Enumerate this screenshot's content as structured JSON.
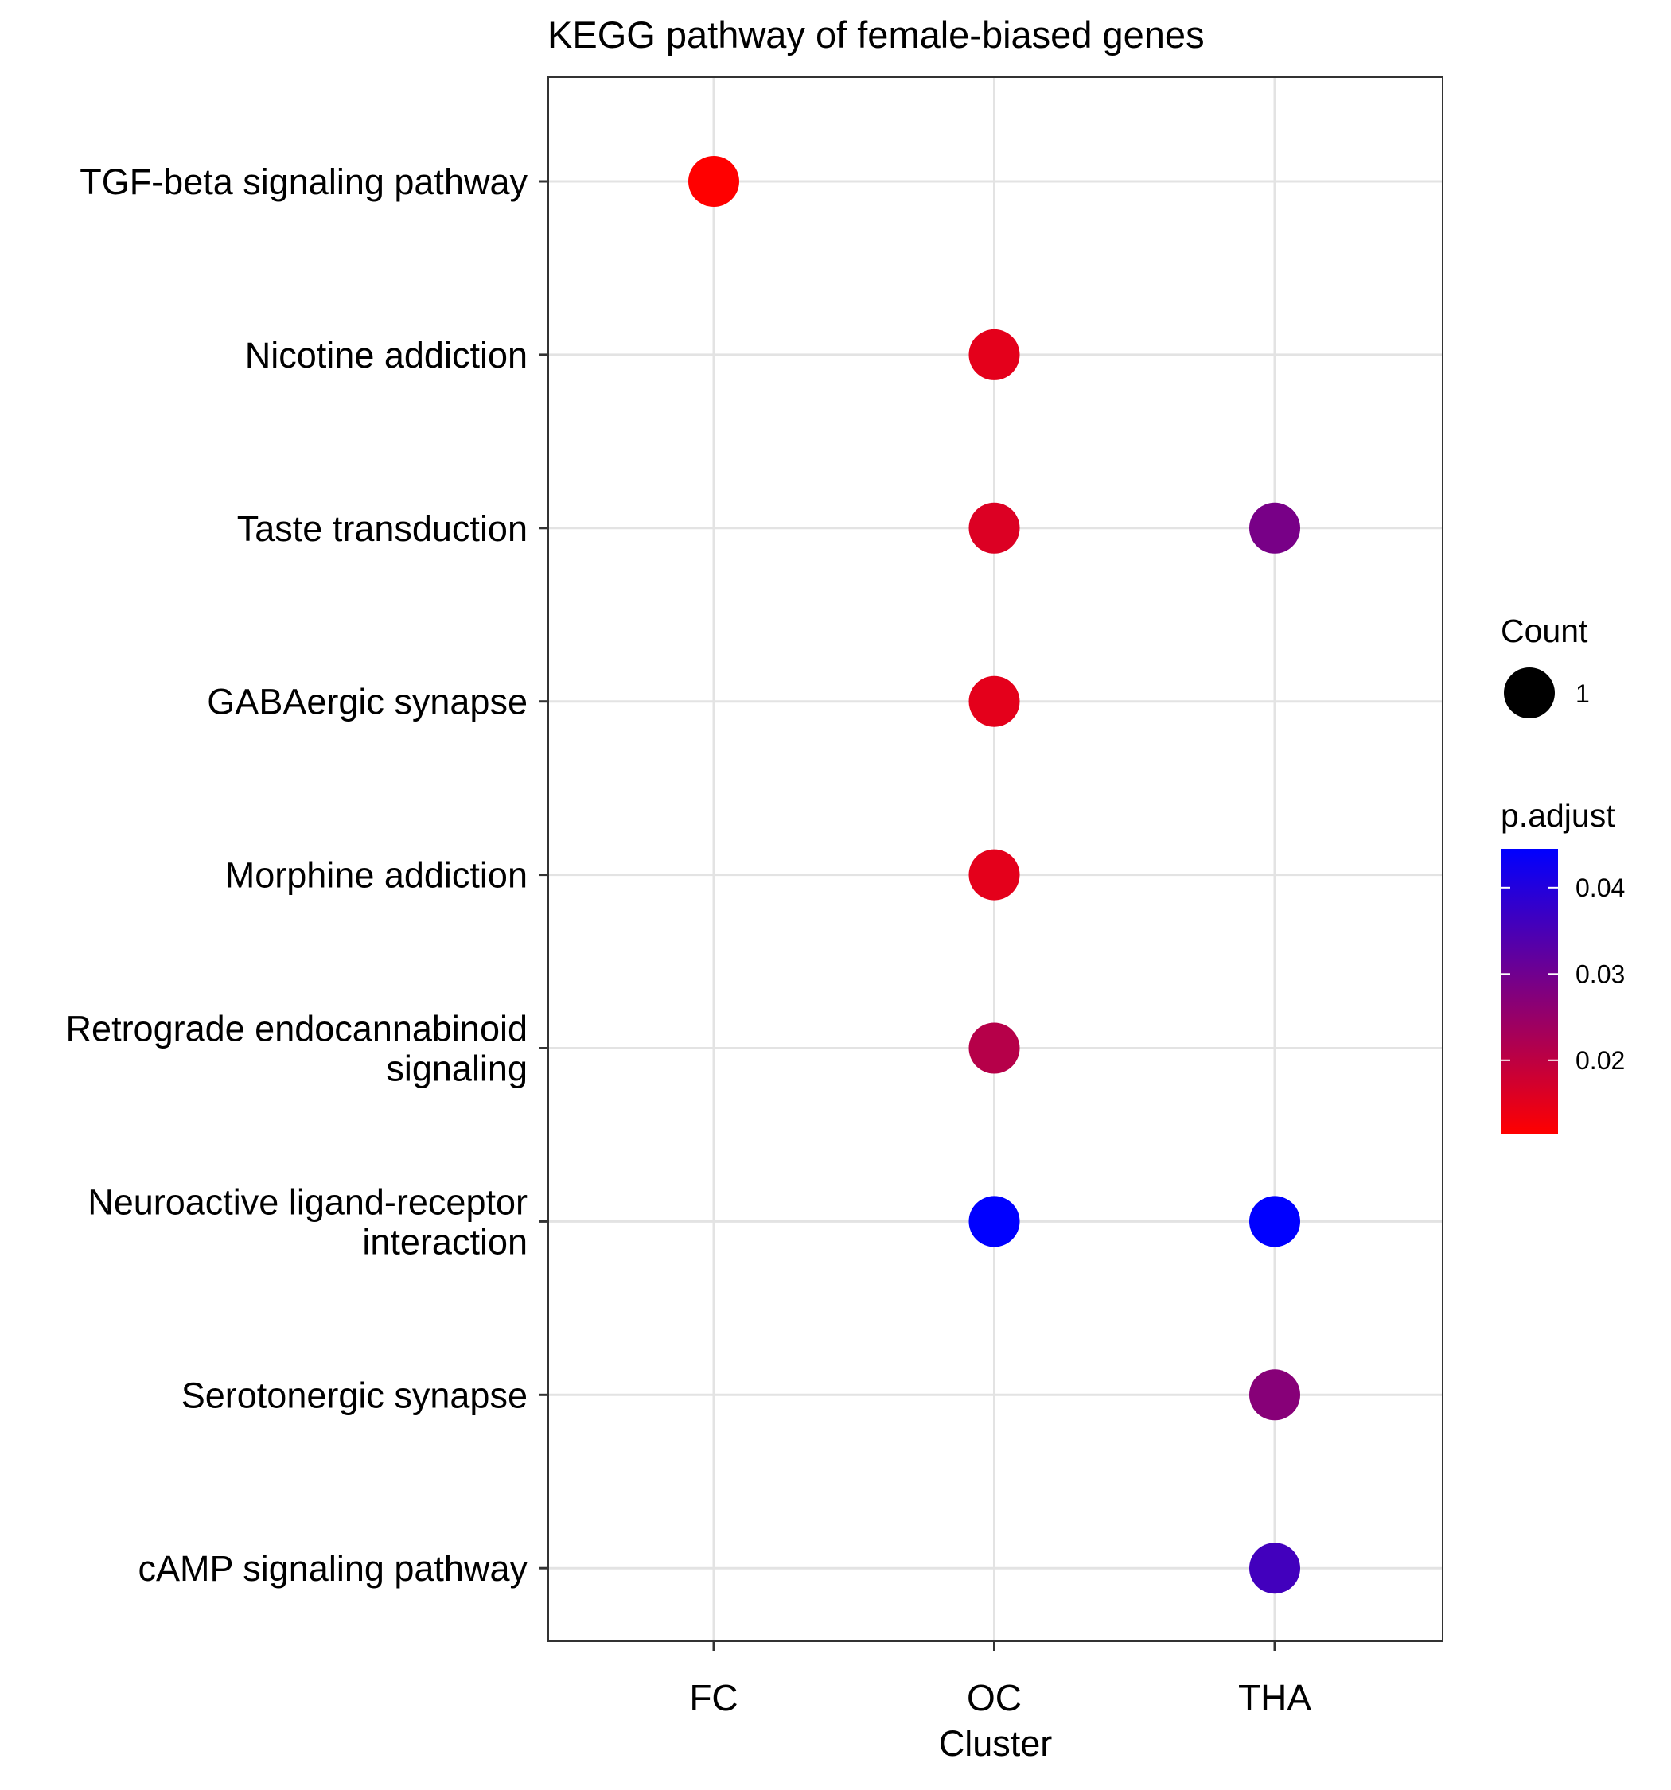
{
  "chart_data": {
    "type": "scatter",
    "title": "KEGG pathway of female-biased genes",
    "xlabel": "Cluster",
    "ylabel": "",
    "x_categories": [
      "FC",
      "OC",
      "THA"
    ],
    "y_categories": [
      "TGF-beta signaling pathway",
      "Nicotine addiction",
      "Taste transduction",
      "GABAergic synapse",
      "Morphine addiction",
      "Retrograde endocannabinoid\nsignaling",
      "Neuroactive ligand-receptor\ninteraction",
      "Serotonergic synapse",
      "cAMP signaling pathway"
    ],
    "points": [
      {
        "x": "FC",
        "y": "TGF-beta signaling pathway",
        "count": 1,
        "p_adjust": 0.0115
      },
      {
        "x": "OC",
        "y": "Nicotine addiction",
        "count": 1,
        "p_adjust": 0.015
      },
      {
        "x": "OC",
        "y": "Taste transduction",
        "count": 1,
        "p_adjust": 0.016
      },
      {
        "x": "THA",
        "y": "Taste transduction",
        "count": 1,
        "p_adjust": 0.029
      },
      {
        "x": "OC",
        "y": "GABAergic synapse",
        "count": 1,
        "p_adjust": 0.015
      },
      {
        "x": "OC",
        "y": "Morphine addiction",
        "count": 1,
        "p_adjust": 0.015
      },
      {
        "x": "OC",
        "y": "Retrograde endocannabinoid\nsignaling",
        "count": 1,
        "p_adjust": 0.021
      },
      {
        "x": "OC",
        "y": "Neuroactive ligand-receptor\ninteraction",
        "count": 1,
        "p_adjust": 0.0445
      },
      {
        "x": "THA",
        "y": "Neuroactive ligand-receptor\ninteraction",
        "count": 1,
        "p_adjust": 0.0445
      },
      {
        "x": "THA",
        "y": "Serotonergic synapse",
        "count": 1,
        "p_adjust": 0.027
      },
      {
        "x": "THA",
        "y": "cAMP signaling pathway",
        "count": 1,
        "p_adjust": 0.036
      }
    ],
    "legend": {
      "size_title": "Count",
      "size_entries": [
        {
          "label": "1",
          "value": 1
        }
      ],
      "color_title": "p.adjust",
      "color_range": [
        0.0115,
        0.0445
      ],
      "color_low": "#ff0000",
      "color_high": "#0000ff",
      "color_ticks": [
        {
          "label": "0.02",
          "value": 0.02
        },
        {
          "label": "0.03",
          "value": 0.03
        },
        {
          "label": "0.04",
          "value": 0.04
        }
      ],
      "placement": "right"
    },
    "grid": true,
    "panel_border": true
  }
}
